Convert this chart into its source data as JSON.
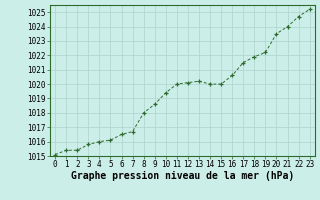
{
  "x": [
    0,
    1,
    2,
    3,
    4,
    5,
    6,
    7,
    8,
    9,
    10,
    11,
    12,
    13,
    14,
    15,
    16,
    17,
    18,
    19,
    20,
    21,
    22,
    23
  ],
  "y": [
    1015.1,
    1015.4,
    1015.4,
    1015.8,
    1016.0,
    1016.1,
    1016.5,
    1016.7,
    1018.0,
    1018.6,
    1019.4,
    1020.0,
    1020.1,
    1020.2,
    1020.0,
    1020.0,
    1020.6,
    1021.5,
    1021.9,
    1022.2,
    1023.5,
    1024.0,
    1024.7,
    1025.2
  ],
  "ylim": [
    1015,
    1025.5
  ],
  "yticks": [
    1015,
    1016,
    1017,
    1018,
    1019,
    1020,
    1021,
    1022,
    1023,
    1024,
    1025
  ],
  "xticks": [
    0,
    1,
    2,
    3,
    4,
    5,
    6,
    7,
    8,
    9,
    10,
    11,
    12,
    13,
    14,
    15,
    16,
    17,
    18,
    19,
    20,
    21,
    22,
    23
  ],
  "line_color": "#2d6a2d",
  "marker_color": "#2d6a2d",
  "bg_color": "#cceee8",
  "grid_color": "#aad4cc",
  "xlabel": "Graphe pression niveau de la mer (hPa)",
  "xlabel_fontsize": 7.0,
  "tick_fontsize": 5.5,
  "spine_color": "#2d6a2d"
}
